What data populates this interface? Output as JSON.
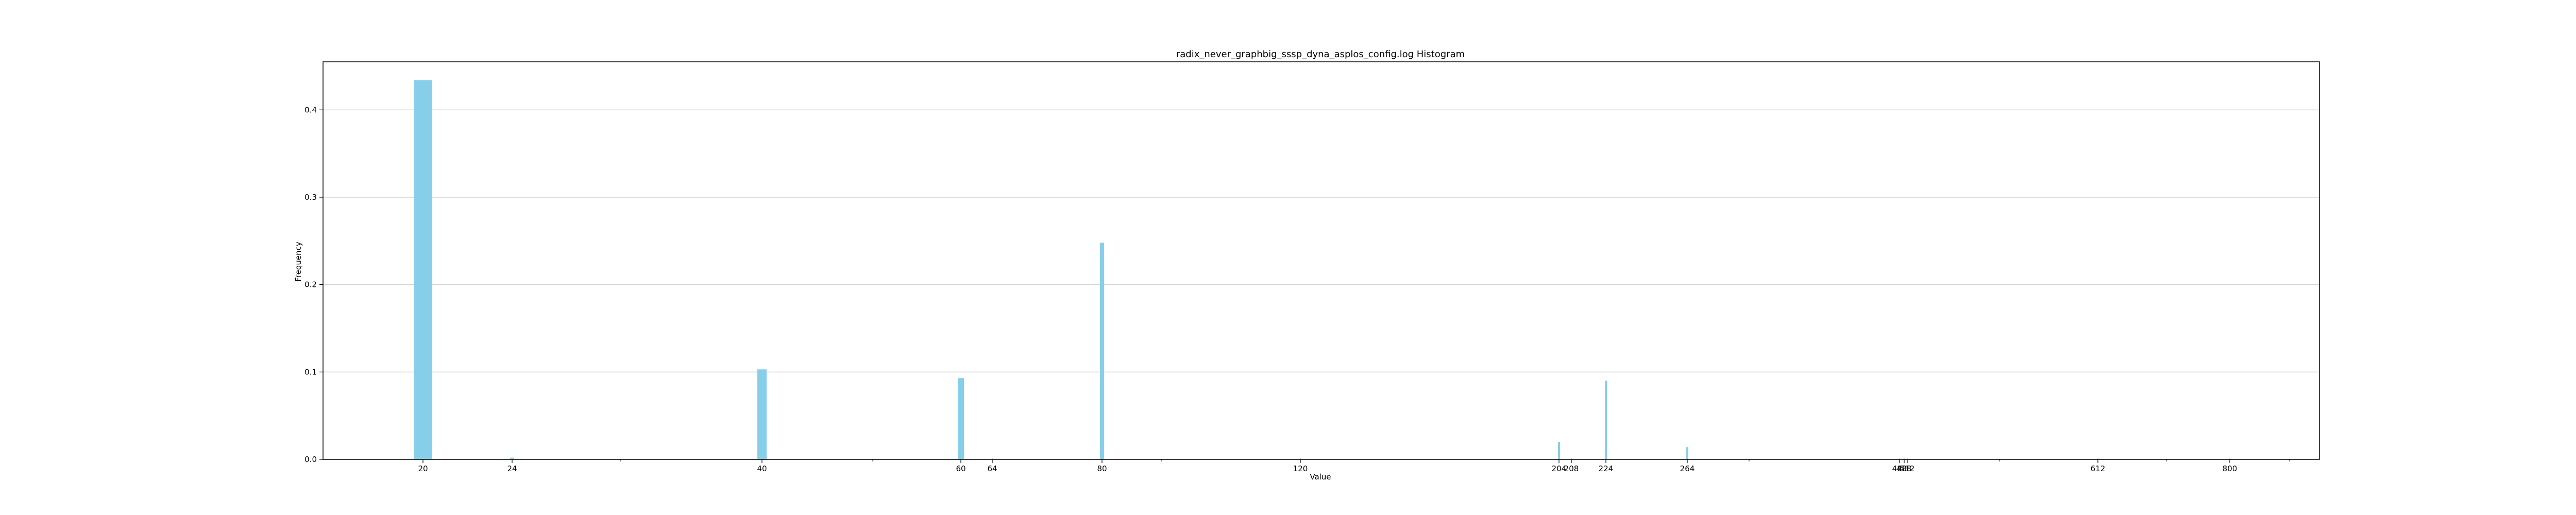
{
  "chart_data": {
    "type": "bar",
    "title": "radix_never_graphbig_sssp_dyna_asplos_config.log Histogram",
    "xlabel": "Value",
    "ylabel": "Frequency",
    "ylim": [
      0,
      0.455
    ],
    "y_ticks": [
      "0.0",
      "0.1",
      "0.2",
      "0.3",
      "0.4"
    ],
    "grid": "horizontal",
    "legend": "none",
    "bar_color": "#87CEEB",
    "x_tick_labels": [
      "20",
      "24",
      "40",
      "60",
      "64",
      "80",
      "120",
      "204",
      "208",
      "224",
      "264",
      "480",
      "488",
      "512",
      "612",
      "800"
    ],
    "categories": [
      "20",
      "24",
      "40",
      "60",
      "64",
      "80",
      "120",
      "204",
      "208",
      "224",
      "264",
      "480",
      "488",
      "512",
      "612",
      "800"
    ],
    "values": [
      0.434,
      0.002,
      0.103,
      0.093,
      0.001,
      0.248,
      0.001,
      0.02,
      0.001,
      0.09,
      0.014,
      0.001,
      0.001,
      0.001,
      0.001,
      0.001
    ]
  }
}
